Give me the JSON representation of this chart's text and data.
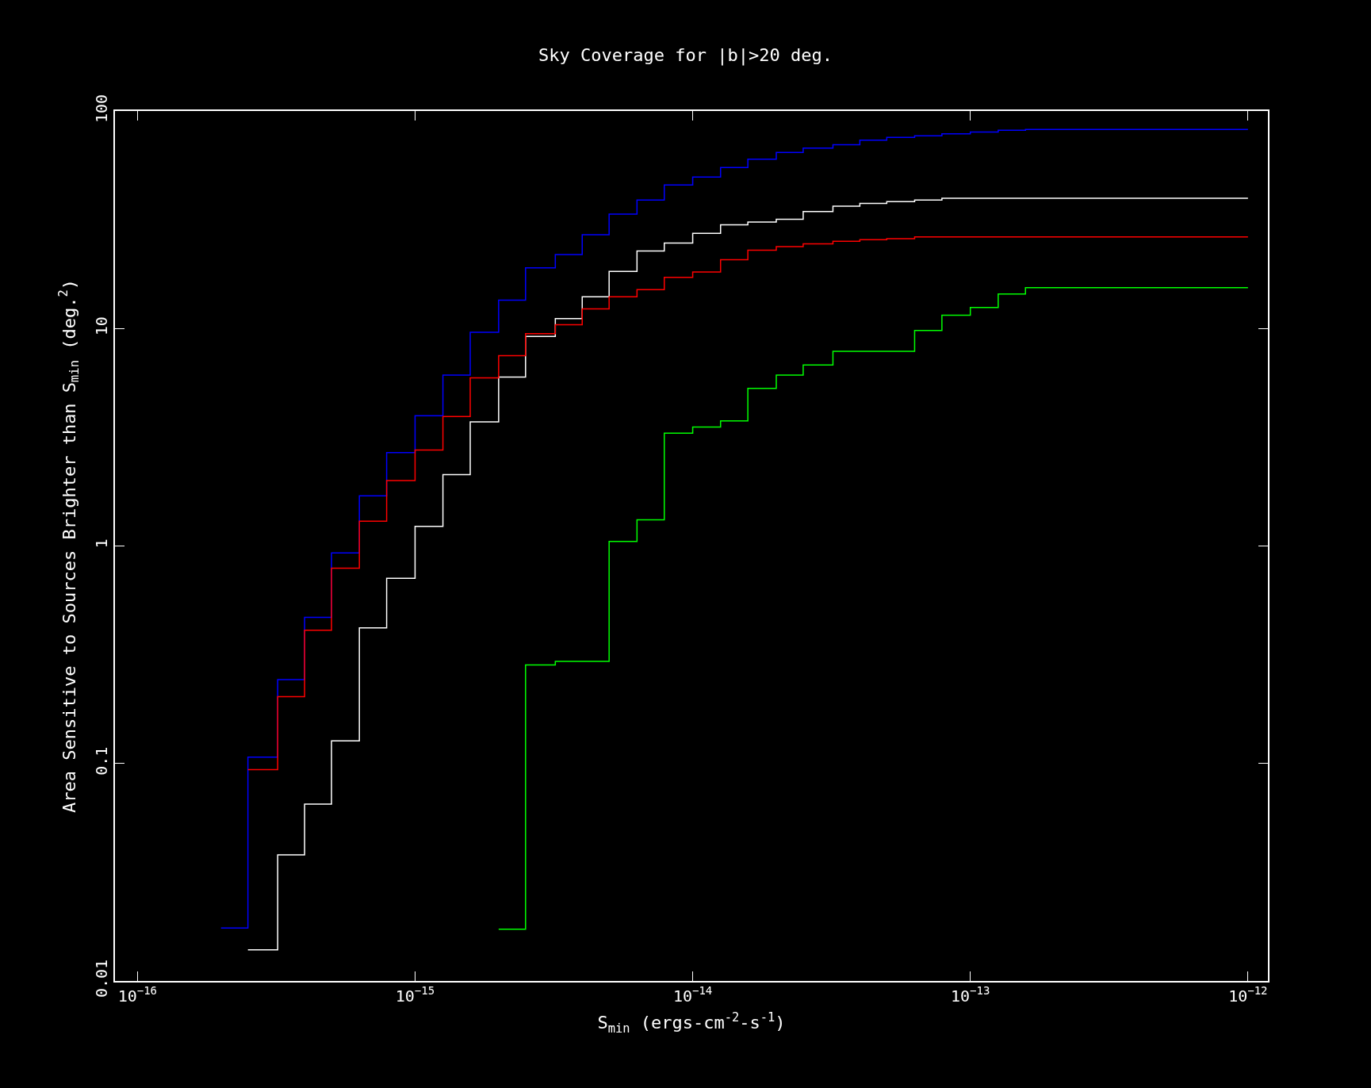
{
  "chart_data": {
    "type": "step",
    "title": "Sky Coverage for |b|>20 deg.",
    "xlabel": "S$_{min}$ (ergs-cm$^{-2}$-s$^{-1}$)",
    "ylabel": "Area Sensitive to Sources Brighter than S$_{min}$ (deg.$^{2}$)",
    "log": "xy",
    "grid": false,
    "xlim": [
      8.3e-17,
      1.18e-12
    ],
    "ylim": [
      0.01,
      100
    ],
    "xticks": [
      {
        "value": 1e-16,
        "label": "10$^{−16}$"
      },
      {
        "value": 1e-15,
        "label": "10$^{−15}$"
      },
      {
        "value": 1e-14,
        "label": "10$^{−14}$"
      },
      {
        "value": 1e-13,
        "label": "10$^{−13}$"
      },
      {
        "value": 1e-12,
        "label": "10$^{−12}$"
      }
    ],
    "yticks": [
      0.01,
      0.1,
      1,
      10,
      100
    ],
    "series": [
      {
        "color": "#0000ff",
        "x": [
          2e-16,
          2.5e-16,
          3.2e-16,
          4e-16,
          5e-16,
          6.3e-16,
          7.9e-16,
          1e-15,
          1.26e-15,
          1.58e-15,
          2e-15,
          2.5e-15,
          3.2e-15,
          4e-15,
          5e-15,
          6.3e-15,
          7.9e-15,
          1e-14,
          1.26e-14,
          1.58e-14,
          2e-14,
          2.5e-14,
          3.2e-14,
          4e-14,
          5e-14,
          6.3e-14,
          7.9e-14,
          1e-13,
          1.26e-13,
          1.58e-13,
          1e-12
        ],
        "values": [
          0.0175,
          0.107,
          0.243,
          0.47,
          0.93,
          1.7,
          2.69,
          3.97,
          6.1,
          9.6,
          13.5,
          19.0,
          21.9,
          27,
          33.6,
          39,
          45.7,
          49.7,
          55,
          60,
          64.5,
          67.6,
          70,
          73.5,
          75.7,
          77,
          78.5,
          80,
          81.5,
          82.2,
          82.2
        ]
      },
      {
        "color": "#ffffff",
        "x": [
          2.5e-16,
          3.2e-16,
          4e-16,
          5e-16,
          6.3e-16,
          7.9e-16,
          1e-15,
          1.26e-15,
          1.58e-15,
          2e-15,
          2.5e-15,
          3.2e-15,
          4e-15,
          5e-15,
          6.3e-15,
          7.9e-15,
          1e-14,
          1.26e-14,
          1.58e-14,
          2e-14,
          2.5e-14,
          3.2e-14,
          4e-14,
          5e-14,
          6.3e-14,
          7.9e-14,
          1e-12
        ],
        "values": [
          0.0139,
          0.038,
          0.065,
          0.127,
          0.42,
          0.71,
          1.23,
          2.13,
          3.72,
          5.98,
          9.2,
          11.1,
          14.0,
          18.3,
          22.7,
          24.7,
          27.4,
          30.0,
          30.9,
          31.8,
          34.5,
          36.5,
          37.6,
          38.3,
          39.0,
          39.7,
          39.7
        ]
      },
      {
        "color": "#ff0000",
        "x": [
          2.5e-16,
          3.2e-16,
          4e-16,
          5e-16,
          6.3e-16,
          7.9e-16,
          1e-15,
          1.26e-15,
          1.58e-15,
          2e-15,
          2.5e-15,
          3.2e-15,
          4e-15,
          5e-15,
          6.3e-15,
          7.9e-15,
          1e-14,
          1.26e-14,
          1.58e-14,
          2e-14,
          2.5e-14,
          3.2e-14,
          4e-14,
          5e-14,
          6.3e-14,
          1e-12
        ],
        "values": [
          0.0937,
          0.203,
          0.41,
          0.79,
          1.3,
          2.0,
          2.76,
          3.94,
          5.93,
          7.5,
          9.46,
          10.4,
          12.3,
          14.0,
          15.1,
          17.2,
          18.2,
          20.7,
          22.9,
          23.8,
          24.5,
          25.2,
          25.6,
          25.9,
          26.4,
          26.4
        ]
      },
      {
        "color": "#00ff00",
        "x": [
          2e-15,
          2.5e-15,
          3.2e-15,
          5e-15,
          6.3e-15,
          7.9e-15,
          1e-14,
          1.26e-14,
          1.58e-14,
          2e-14,
          2.5e-14,
          3.2e-14,
          6.3e-14,
          7.9e-14,
          1e-13,
          1.26e-13,
          1.58e-13,
          1e-12
        ],
        "values": [
          0.0173,
          0.284,
          0.295,
          1.05,
          1.32,
          3.3,
          3.52,
          3.76,
          5.3,
          6.1,
          6.8,
          7.85,
          9.8,
          11.5,
          12.5,
          14.4,
          15.4,
          15.4
        ]
      }
    ]
  }
}
